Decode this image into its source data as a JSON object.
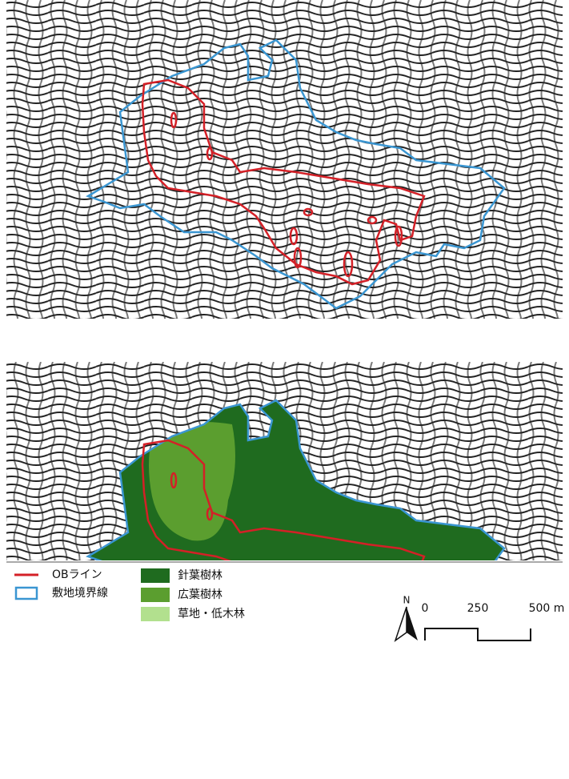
{
  "legend": {
    "lines": [
      "OBライン",
      "敷地境界線"
    ],
    "zones": [
      "針葉樹林",
      "広葉樹林",
      "草地・低木林"
    ]
  },
  "north": "N",
  "scale": {
    "labels": [
      "0",
      "250",
      "500 m"
    ]
  }
}
